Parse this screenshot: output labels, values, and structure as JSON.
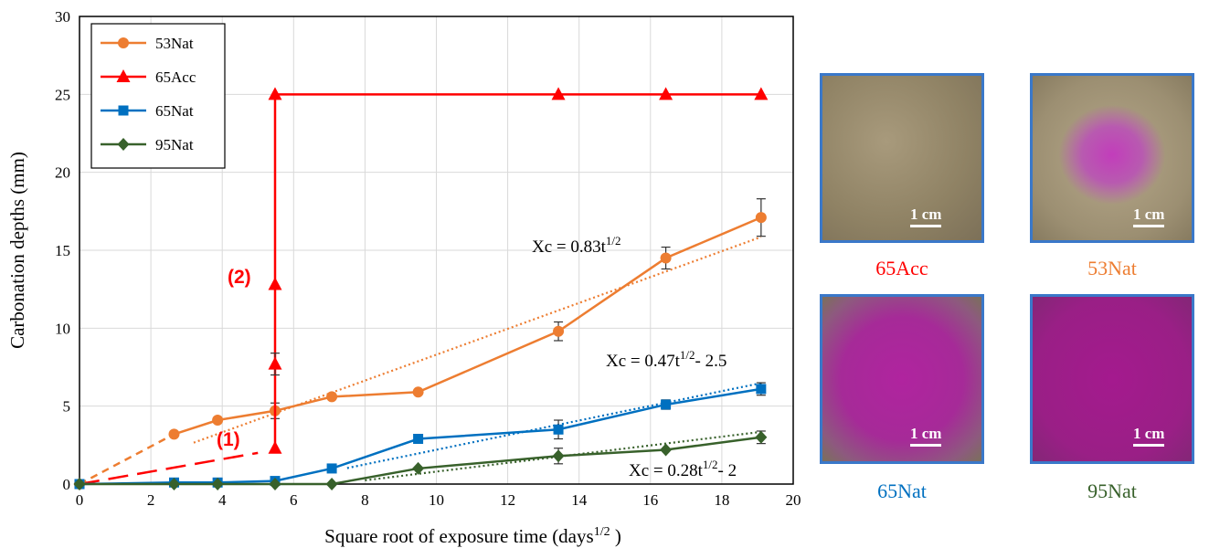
{
  "chart_data": {
    "type": "line",
    "xlabel": "Square root of exposure time (days",
    "xlabel_sup": "1/2",
    "xlabel_close": " )",
    "ylabel": "Carbonation depths (mm)",
    "xlim": [
      0,
      20
    ],
    "ylim": [
      0,
      30
    ],
    "x_ticks": [
      0,
      2,
      4,
      6,
      8,
      10,
      12,
      14,
      16,
      18,
      20
    ],
    "y_ticks": [
      0,
      5,
      10,
      15,
      20,
      25,
      30
    ],
    "grid": true,
    "legend_position": "top-left",
    "series": [
      {
        "name": "53Nat",
        "color": "#ed7d31",
        "marker": "circle",
        "x": [
          0,
          2.65,
          3.87,
          5.48,
          7.07,
          9.49,
          13.42,
          16.43,
          19.1
        ],
        "y": [
          0,
          3.2,
          4.1,
          4.7,
          5.6,
          5.9,
          9.8,
          14.5,
          17.1
        ],
        "err": [
          0,
          0,
          0,
          0.5,
          0,
          0,
          0.6,
          0.7,
          1.2
        ],
        "dashed_segment_until": 1
      },
      {
        "name": "65Acc",
        "color": "#ff0000",
        "marker": "triangle",
        "x": [
          5.48,
          5.48,
          5.48,
          5.48,
          13.42,
          16.43,
          19.1
        ],
        "y": [
          2.3,
          7.7,
          12.8,
          25,
          25,
          25,
          25
        ],
        "err": [
          0,
          0.7,
          0,
          0,
          0,
          0,
          0
        ]
      },
      {
        "name": "65Nat",
        "color": "#0070c0",
        "marker": "square",
        "x": [
          0,
          2.65,
          3.87,
          5.48,
          7.07,
          9.49,
          13.42,
          16.43,
          19.1
        ],
        "y": [
          0,
          0.1,
          0.1,
          0.2,
          1.0,
          2.9,
          3.5,
          5.1,
          6.1
        ],
        "err": [
          0,
          0,
          0,
          0,
          0,
          0,
          0.6,
          0.3,
          0.4
        ]
      },
      {
        "name": "95Nat",
        "color": "#38612b",
        "marker": "diamond",
        "x": [
          0,
          2.65,
          3.87,
          5.48,
          7.07,
          9.49,
          13.42,
          16.43,
          19.1
        ],
        "y": [
          0,
          0,
          0,
          0,
          0,
          1.0,
          1.8,
          2.2,
          3.0
        ],
        "err": [
          0,
          0,
          0,
          0,
          0,
          0,
          0.5,
          0,
          0.4
        ]
      }
    ],
    "trendlines": [
      {
        "series": "53Nat",
        "slope": 0.83,
        "intercept": 0,
        "x_range": [
          3.2,
          19.1
        ]
      },
      {
        "series": "65Nat",
        "slope": 0.47,
        "intercept": -2.5,
        "x_range": [
          7.5,
          19.1
        ]
      },
      {
        "series": "95Nat",
        "slope": 0.28,
        "intercept": -2,
        "x_range": [
          8.0,
          19.1
        ]
      }
    ],
    "red_dashed_segment": {
      "x": [
        0,
        5.0
      ],
      "y": [
        0,
        2.0
      ]
    },
    "annotations": [
      {
        "id": "eq1",
        "text": "Xc = 0.83t",
        "sup": "1/2",
        "tail": ""
      },
      {
        "id": "eq2",
        "text": "Xc = 0.47t",
        "sup": "1/2",
        "tail": "- 2.5"
      },
      {
        "id": "eq3",
        "text": "Xc = 0.28t",
        "sup": "1/2",
        "tail": "- 2"
      },
      {
        "id": "lab1",
        "text": "(1)",
        "color": "#ff0000"
      },
      {
        "id": "lab2",
        "text": "(2)",
        "color": "#ff0000"
      }
    ]
  },
  "photos": [
    {
      "caption": "65Acc",
      "caption_color": "#ff0000",
      "scale_label": "1 cm",
      "stain": "none"
    },
    {
      "caption": "53Nat",
      "caption_color": "#ed7d31",
      "scale_label": "1 cm",
      "stain": "center"
    },
    {
      "caption": "65Nat",
      "caption_color": "#0070c0",
      "scale_label": "1 cm",
      "stain": "mostly"
    },
    {
      "caption": "95Nat",
      "caption_color": "#38612b",
      "scale_label": "1 cm",
      "stain": "full"
    }
  ]
}
